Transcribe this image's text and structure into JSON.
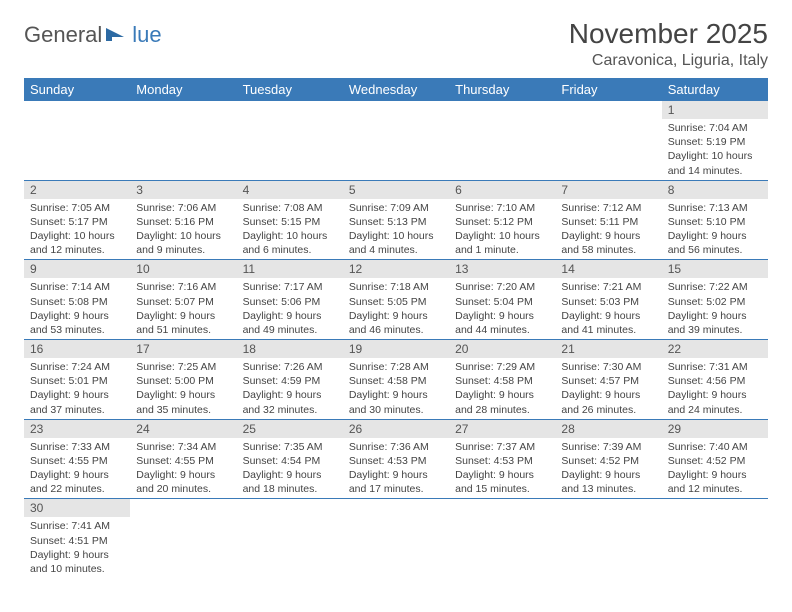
{
  "logo": {
    "part1": "General",
    "part2": "lue"
  },
  "title": "November 2025",
  "location": "Caravonica, Liguria, Italy",
  "weekdays": [
    "Sunday",
    "Monday",
    "Tuesday",
    "Wednesday",
    "Thursday",
    "Friday",
    "Saturday"
  ],
  "colors": {
    "header_bg": "#3a7ab8",
    "daynum_bg": "#e5e5e5",
    "border": "#3a7ab8",
    "text": "#444"
  },
  "font": {
    "title_size": 28,
    "location_size": 16,
    "header_size": 13,
    "daynum_size": 12,
    "body_size": 10.5
  },
  "rows": [
    [
      null,
      null,
      null,
      null,
      null,
      null,
      {
        "n": 1,
        "sunrise": "7:04 AM",
        "sunset": "5:19 PM",
        "daylight": "10 hours and 14 minutes."
      }
    ],
    [
      {
        "n": 2,
        "sunrise": "7:05 AM",
        "sunset": "5:17 PM",
        "daylight": "10 hours and 12 minutes."
      },
      {
        "n": 3,
        "sunrise": "7:06 AM",
        "sunset": "5:16 PM",
        "daylight": "10 hours and 9 minutes."
      },
      {
        "n": 4,
        "sunrise": "7:08 AM",
        "sunset": "5:15 PM",
        "daylight": "10 hours and 6 minutes."
      },
      {
        "n": 5,
        "sunrise": "7:09 AM",
        "sunset": "5:13 PM",
        "daylight": "10 hours and 4 minutes."
      },
      {
        "n": 6,
        "sunrise": "7:10 AM",
        "sunset": "5:12 PM",
        "daylight": "10 hours and 1 minute."
      },
      {
        "n": 7,
        "sunrise": "7:12 AM",
        "sunset": "5:11 PM",
        "daylight": "9 hours and 58 minutes."
      },
      {
        "n": 8,
        "sunrise": "7:13 AM",
        "sunset": "5:10 PM",
        "daylight": "9 hours and 56 minutes."
      }
    ],
    [
      {
        "n": 9,
        "sunrise": "7:14 AM",
        "sunset": "5:08 PM",
        "daylight": "9 hours and 53 minutes."
      },
      {
        "n": 10,
        "sunrise": "7:16 AM",
        "sunset": "5:07 PM",
        "daylight": "9 hours and 51 minutes."
      },
      {
        "n": 11,
        "sunrise": "7:17 AM",
        "sunset": "5:06 PM",
        "daylight": "9 hours and 49 minutes."
      },
      {
        "n": 12,
        "sunrise": "7:18 AM",
        "sunset": "5:05 PM",
        "daylight": "9 hours and 46 minutes."
      },
      {
        "n": 13,
        "sunrise": "7:20 AM",
        "sunset": "5:04 PM",
        "daylight": "9 hours and 44 minutes."
      },
      {
        "n": 14,
        "sunrise": "7:21 AM",
        "sunset": "5:03 PM",
        "daylight": "9 hours and 41 minutes."
      },
      {
        "n": 15,
        "sunrise": "7:22 AM",
        "sunset": "5:02 PM",
        "daylight": "9 hours and 39 minutes."
      }
    ],
    [
      {
        "n": 16,
        "sunrise": "7:24 AM",
        "sunset": "5:01 PM",
        "daylight": "9 hours and 37 minutes."
      },
      {
        "n": 17,
        "sunrise": "7:25 AM",
        "sunset": "5:00 PM",
        "daylight": "9 hours and 35 minutes."
      },
      {
        "n": 18,
        "sunrise": "7:26 AM",
        "sunset": "4:59 PM",
        "daylight": "9 hours and 32 minutes."
      },
      {
        "n": 19,
        "sunrise": "7:28 AM",
        "sunset": "4:58 PM",
        "daylight": "9 hours and 30 minutes."
      },
      {
        "n": 20,
        "sunrise": "7:29 AM",
        "sunset": "4:58 PM",
        "daylight": "9 hours and 28 minutes."
      },
      {
        "n": 21,
        "sunrise": "7:30 AM",
        "sunset": "4:57 PM",
        "daylight": "9 hours and 26 minutes."
      },
      {
        "n": 22,
        "sunrise": "7:31 AM",
        "sunset": "4:56 PM",
        "daylight": "9 hours and 24 minutes."
      }
    ],
    [
      {
        "n": 23,
        "sunrise": "7:33 AM",
        "sunset": "4:55 PM",
        "daylight": "9 hours and 22 minutes."
      },
      {
        "n": 24,
        "sunrise": "7:34 AM",
        "sunset": "4:55 PM",
        "daylight": "9 hours and 20 minutes."
      },
      {
        "n": 25,
        "sunrise": "7:35 AM",
        "sunset": "4:54 PM",
        "daylight": "9 hours and 18 minutes."
      },
      {
        "n": 26,
        "sunrise": "7:36 AM",
        "sunset": "4:53 PM",
        "daylight": "9 hours and 17 minutes."
      },
      {
        "n": 27,
        "sunrise": "7:37 AM",
        "sunset": "4:53 PM",
        "daylight": "9 hours and 15 minutes."
      },
      {
        "n": 28,
        "sunrise": "7:39 AM",
        "sunset": "4:52 PM",
        "daylight": "9 hours and 13 minutes."
      },
      {
        "n": 29,
        "sunrise": "7:40 AM",
        "sunset": "4:52 PM",
        "daylight": "9 hours and 12 minutes."
      }
    ],
    [
      {
        "n": 30,
        "sunrise": "7:41 AM",
        "sunset": "4:51 PM",
        "daylight": "9 hours and 10 minutes."
      },
      null,
      null,
      null,
      null,
      null,
      null
    ]
  ]
}
